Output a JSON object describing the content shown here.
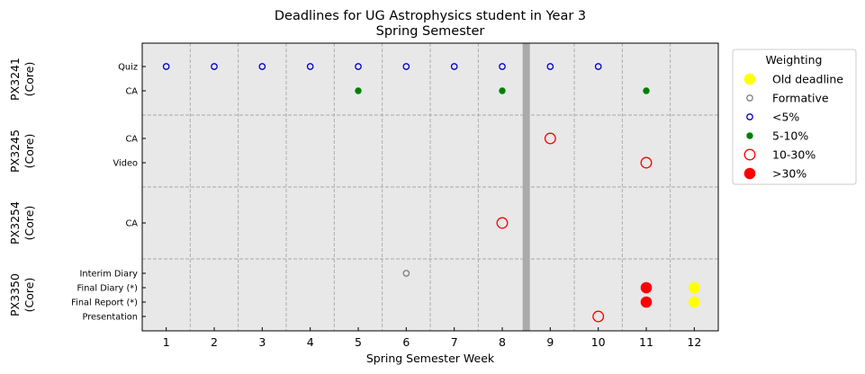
{
  "chart_data": {
    "type": "scatter",
    "title": "Deadlines for UG Astrophysics student in Year 3",
    "subtitle": "Spring Semester",
    "xlabel": "Spring Semester Week",
    "xlim": [
      0.5,
      12.5
    ],
    "x_ticks": [
      1,
      2,
      3,
      4,
      5,
      6,
      7,
      8,
      9,
      10,
      11,
      12
    ],
    "grid": "dashed vertical lines at half-week boundaries",
    "shaded_week": 8.5,
    "modules": [
      {
        "name": "PX3241\n(Core)",
        "label_lines": [
          "PX3241",
          "(Core)"
        ],
        "rows": [
          "Quiz",
          "CA"
        ]
      },
      {
        "name": "PX3245\n(Core)",
        "label_lines": [
          "PX3245",
          "(Core)"
        ],
        "rows": [
          "CA",
          "Video"
        ]
      },
      {
        "name": "PX3254\n(Core)",
        "label_lines": [
          "PX3254",
          "(Core)"
        ],
        "rows": [
          "CA"
        ]
      },
      {
        "name": "PX3350\n(Core)",
        "label_lines": [
          "PX3350",
          "(Core)"
        ],
        "rows": [
          "Interim Diary",
          "Final Diary (*)",
          "Final Report (*)",
          "Presentation"
        ]
      }
    ],
    "legend": {
      "title": "Weighting",
      "placement": "outside right, top",
      "entries": [
        {
          "label": "Old deadline",
          "style": "old"
        },
        {
          "label": "Formative",
          "style": "formative"
        },
        {
          "label": "<5%",
          "style": "lt5"
        },
        {
          "label": "5-10%",
          "style": "w5_10"
        },
        {
          "label": "10-30%",
          "style": "w10_30"
        },
        {
          "label": ">30%",
          "style": "gt30"
        }
      ]
    },
    "styles": {
      "old": {
        "fill": "#ffff00",
        "stroke": "#ffff00",
        "size": "large"
      },
      "formative": {
        "fill": "none",
        "stroke": "#808080",
        "size": "small"
      },
      "lt5": {
        "fill": "none",
        "stroke": "#0000cc",
        "size": "small"
      },
      "w5_10": {
        "fill": "#008000",
        "stroke": "#008000",
        "size": "tiny"
      },
      "w10_30": {
        "fill": "none",
        "stroke": "#ff0000",
        "size": "large"
      },
      "gt30": {
        "fill": "#ff0000",
        "stroke": "#ff0000",
        "size": "large"
      }
    },
    "points": [
      {
        "module": 0,
        "row": "Quiz",
        "week": 1,
        "style": "lt5"
      },
      {
        "module": 0,
        "row": "Quiz",
        "week": 2,
        "style": "lt5"
      },
      {
        "module": 0,
        "row": "Quiz",
        "week": 3,
        "style": "lt5"
      },
      {
        "module": 0,
        "row": "Quiz",
        "week": 4,
        "style": "lt5"
      },
      {
        "module": 0,
        "row": "Quiz",
        "week": 5,
        "style": "lt5"
      },
      {
        "module": 0,
        "row": "Quiz",
        "week": 6,
        "style": "lt5"
      },
      {
        "module": 0,
        "row": "Quiz",
        "week": 7,
        "style": "lt5"
      },
      {
        "module": 0,
        "row": "Quiz",
        "week": 8,
        "style": "lt5"
      },
      {
        "module": 0,
        "row": "Quiz",
        "week": 9,
        "style": "lt5"
      },
      {
        "module": 0,
        "row": "Quiz",
        "week": 10,
        "style": "lt5"
      },
      {
        "module": 0,
        "row": "CA",
        "week": 5,
        "style": "w5_10"
      },
      {
        "module": 0,
        "row": "CA",
        "week": 8,
        "style": "w5_10"
      },
      {
        "module": 0,
        "row": "CA",
        "week": 11,
        "style": "w5_10"
      },
      {
        "module": 1,
        "row": "CA",
        "week": 9,
        "style": "w10_30"
      },
      {
        "module": 1,
        "row": "Video",
        "week": 11,
        "style": "w10_30"
      },
      {
        "module": 2,
        "row": "CA",
        "week": 8,
        "style": "w10_30"
      },
      {
        "module": 3,
        "row": "Interim Diary",
        "week": 6,
        "style": "formative"
      },
      {
        "module": 3,
        "row": "Final Diary (*)",
        "week": 11,
        "style": "gt30"
      },
      {
        "module": 3,
        "row": "Final Diary (*)",
        "week": 12,
        "style": "old"
      },
      {
        "module": 3,
        "row": "Final Report (*)",
        "week": 11,
        "style": "gt30"
      },
      {
        "module": 3,
        "row": "Final Report (*)",
        "week": 12,
        "style": "old"
      },
      {
        "module": 3,
        "row": "Presentation",
        "week": 10,
        "style": "w10_30"
      }
    ]
  }
}
